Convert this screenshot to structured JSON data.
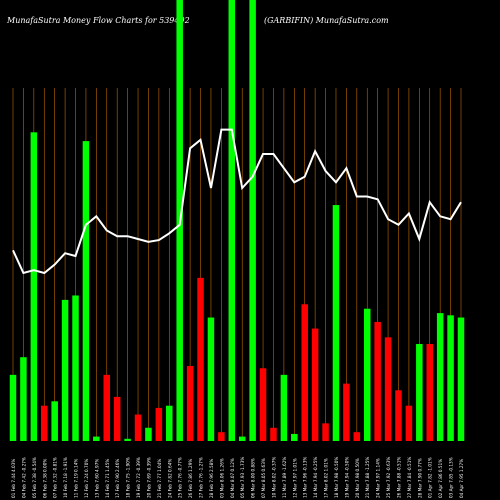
{
  "title_left": "MunafaSutra  Money Flow  Charts for 539492",
  "title_right": "(GARBIFIN) MunafaSutra.com",
  "colors": {
    "up": "#00ff00",
    "down": "#ff0000",
    "grid": "#c06a00",
    "line": "#ffffff",
    "bg": "#000000",
    "text": "#ffffff"
  },
  "chart_data": {
    "type": "bar",
    "title": "MunafaSutra  Money Flow  Charts for 539492 (GARBIFIN) MunafaSutra.com",
    "note": "Bar heights are relative money-flow magnitudes on a 0-100 scale; line is relative price on a 0-100 scale.",
    "categories": [
      "01 Feb 7.44 4.03%",
      "04 Feb 7.42 -0.27%",
      "05 Feb 7.38 -0.54%",
      "06 Feb 7.38 0.00%",
      "07 Feb 7.32 -0.81%",
      "10 Feb 7.18 -1.91%",
      "11 Feb 7.19 0.14%",
      "12 Feb 7.24 0.70%",
      "13 Feb 7.60 4.97%",
      "14 Feb 7.71 1.45%",
      "17 Feb 7.90 2.46%",
      "18 Feb 7.75 -1.90%",
      "19 Feb 7.72 -0.39%",
      "20 Feb 7.69 -0.39%",
      "21 Feb 7.77 1.04%",
      "24 Feb 7.82 0.64%",
      "25 Feb 7.76 -0.77%",
      "26 Feb 7.86 1.29%",
      "27 Feb 7.76 -1.27%",
      "28 Feb 7.96 2.58%",
      "03 Mar 8.06 1.26%",
      "04 Mar 8.07 0.12%",
      "05 Mar 7.93 -1.73%",
      "06 Mar 8.00 0.88%",
      "07 Mar 8.05 0.63%",
      "10 Mar 8.02 -0.37%",
      "11 Mar 7.89 -1.62%",
      "12 Mar 7.97 1.01%",
      "13 Mar 7.96 -0.13%",
      "14 Mar 7.94 -0.25%",
      "17 Mar 8.02 1.01%",
      "18 Mar 7.98 -0.50%",
      "19 Mar 7.94 -0.50%",
      "20 Mar 7.98 0.50%",
      "21 Mar 7.88 -1.25%",
      "24 Mar 7.97 1.14%",
      "25 Mar 7.92 -0.63%",
      "26 Mar 7.88 -0.51%",
      "27 Mar 7.84 -0.51%",
      "28 Mar 7.90 0.77%",
      "01 Apr 7.82 -1.01%",
      "02 Apr 7.86 0.51%",
      "03 Apr 7.85 -0.13%",
      "04 Apr 7.95 1.27%"
    ],
    "series": [
      {
        "name": "",
        "values": [
          15,
          19,
          70,
          8,
          9,
          32,
          33,
          68,
          1,
          15,
          10,
          0.5,
          6,
          3,
          7.5,
          8,
          100,
          17,
          37,
          28,
          2,
          100,
          1,
          100,
          16.5,
          3,
          15,
          1.6,
          31,
          25.5,
          4,
          53.5,
          13,
          2,
          30,
          27,
          23.5,
          11.5,
          8,
          22,
          22,
          29,
          28.5,
          28
        ],
        "directions": [
          "up",
          "up",
          "up",
          "down",
          "up",
          "up",
          "up",
          "up",
          "up",
          "down",
          "down",
          "up",
          "down",
          "up",
          "down",
          "up",
          "up",
          "down",
          "down",
          "up",
          "down",
          "up",
          "up",
          "up",
          "down",
          "down",
          "up",
          "up",
          "down",
          "down",
          "down",
          "up",
          "down",
          "down",
          "up",
          "down",
          "down",
          "down",
          "down",
          "up",
          "down",
          "up",
          "up",
          "up"
        ]
      },
      {
        "name": "",
        "values": [
          62,
          58,
          58.5,
          58,
          59.5,
          61.5,
          61,
          66.5,
          68,
          65.5,
          64.5,
          64.5,
          64,
          63.5,
          63.8,
          65,
          66.5,
          80,
          81.5,
          73,
          83.3,
          83.3,
          73,
          75,
          79,
          79,
          76.5,
          74,
          75,
          79.5,
          76,
          74,
          76.5,
          71.5,
          71.5,
          71,
          67.5,
          66.5,
          68.5,
          64,
          70.5,
          68,
          67.5,
          70.5
        ]
      }
    ]
  }
}
